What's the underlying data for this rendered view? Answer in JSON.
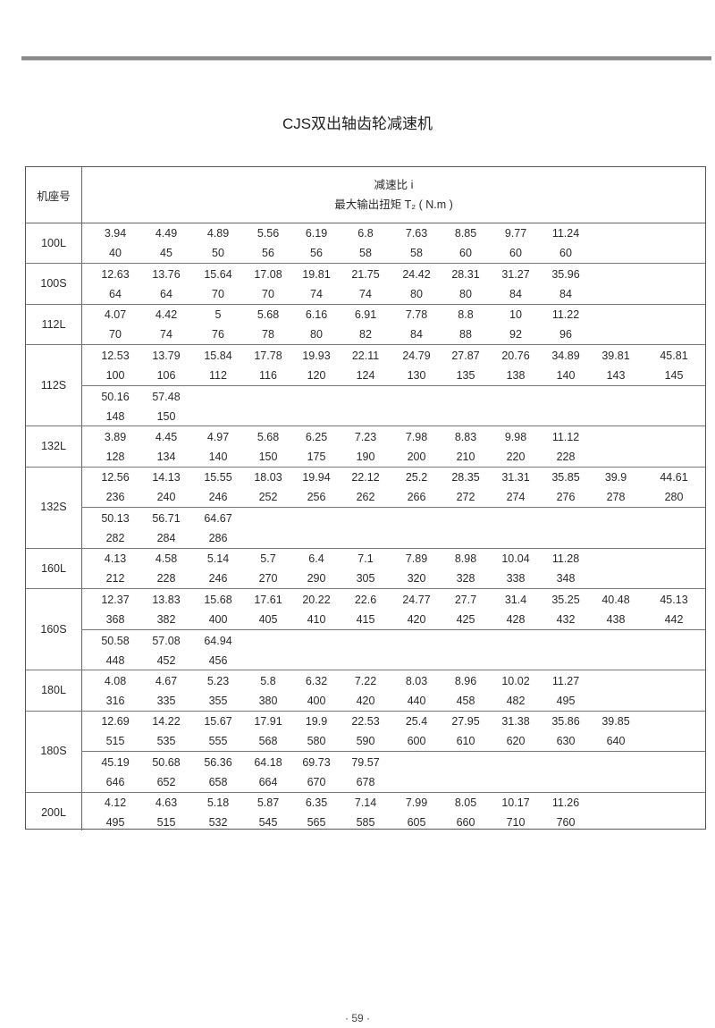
{
  "page": {
    "title": "CJS双出轴齿轮减速机",
    "page_number": "· 59 ·"
  },
  "table": {
    "header_model": "机座号",
    "header_ratio": "减速比 i",
    "header_torque": "最大输出扭矩  T₂ ( N.m )",
    "models": [
      {
        "name": "100L",
        "groups": [
          {
            "ratios": [
              "3.94",
              "4.49",
              "4.89",
              "5.56",
              "6.19",
              "6.8",
              "7.63",
              "8.85",
              "9.77",
              "11.24"
            ],
            "torques": [
              "40",
              "45",
              "50",
              "56",
              "56",
              "58",
              "58",
              "60",
              "60",
              "60"
            ]
          }
        ]
      },
      {
        "name": "100S",
        "groups": [
          {
            "ratios": [
              "12.63",
              "13.76",
              "15.64",
              "17.08",
              "19.81",
              "21.75",
              "24.42",
              "28.31",
              "31.27",
              "35.96"
            ],
            "torques": [
              "64",
              "64",
              "70",
              "70",
              "74",
              "74",
              "80",
              "80",
              "84",
              "84"
            ]
          }
        ]
      },
      {
        "name": "112L",
        "groups": [
          {
            "ratios": [
              "4.07",
              "4.42",
              "5",
              "5.68",
              "6.16",
              "6.91",
              "7.78",
              "8.8",
              "10",
              "11.22"
            ],
            "torques": [
              "70",
              "74",
              "76",
              "78",
              "80",
              "82",
              "84",
              "88",
              "92",
              "96"
            ]
          }
        ]
      },
      {
        "name": "112S",
        "groups": [
          {
            "ratios": [
              "12.53",
              "13.79",
              "15.84",
              "17.78",
              "19.93",
              "22.11",
              "24.79",
              "27.87",
              "20.76",
              "34.89",
              "39.81",
              "45.81"
            ],
            "torques": [
              "100",
              "106",
              "112",
              "116",
              "120",
              "124",
              "130",
              "135",
              "138",
              "140",
              "143",
              "145"
            ]
          },
          {
            "ratios": [
              "50.16",
              "57.48"
            ],
            "torques": [
              "148",
              "150"
            ]
          }
        ]
      },
      {
        "name": "132L",
        "groups": [
          {
            "ratios": [
              "3.89",
              "4.45",
              "4.97",
              "5.68",
              "6.25",
              "7.23",
              "7.98",
              "8.83",
              "9.98",
              "11.12"
            ],
            "torques": [
              "128",
              "134",
              "140",
              "150",
              "175",
              "190",
              "200",
              "210",
              "220",
              "228"
            ]
          }
        ]
      },
      {
        "name": "132S",
        "groups": [
          {
            "ratios": [
              "12.56",
              "14.13",
              "15.55",
              "18.03",
              "19.94",
              "22.12",
              "25.2",
              "28.35",
              "31.31",
              "35.85",
              "39.9",
              "44.61"
            ],
            "torques": [
              "236",
              "240",
              "246",
              "252",
              "256",
              "262",
              "266",
              "272",
              "274",
              "276",
              "278",
              "280"
            ]
          },
          {
            "ratios": [
              "50.13",
              "56.71",
              "64.67"
            ],
            "torques": [
              "282",
              "284",
              "286"
            ]
          }
        ]
      },
      {
        "name": "160L",
        "groups": [
          {
            "ratios": [
              "4.13",
              "4.58",
              "5.14",
              "5.7",
              "6.4",
              "7.1",
              "7.89",
              "8.98",
              "10.04",
              "11.28"
            ],
            "torques": [
              "212",
              "228",
              "246",
              "270",
              "290",
              "305",
              "320",
              "328",
              "338",
              "348"
            ]
          }
        ]
      },
      {
        "name": "160S",
        "groups": [
          {
            "ratios": [
              "12.37",
              "13.83",
              "15.68",
              "17.61",
              "20.22",
              "22.6",
              "24.77",
              "27.7",
              "31.4",
              "35.25",
              "40.48",
              "45.13"
            ],
            "torques": [
              "368",
              "382",
              "400",
              "405",
              "410",
              "415",
              "420",
              "425",
              "428",
              "432",
              "438",
              "442"
            ]
          },
          {
            "ratios": [
              "50.58",
              "57.08",
              "64.94"
            ],
            "torques": [
              "448",
              "452",
              "456"
            ]
          }
        ]
      },
      {
        "name": "180L",
        "groups": [
          {
            "ratios": [
              "4.08",
              "4.67",
              "5.23",
              "5.8",
              "6.32",
              "7.22",
              "8.03",
              "8.96",
              "10.02",
              "11.27"
            ],
            "torques": [
              "316",
              "335",
              "355",
              "380",
              "400",
              "420",
              "440",
              "458",
              "482",
              "495"
            ]
          }
        ]
      },
      {
        "name": "180S",
        "groups": [
          {
            "ratios": [
              "12.69",
              "14.22",
              "15.67",
              "17.91",
              "19.9",
              "22.53",
              "25.4",
              "27.95",
              "31.38",
              "35.86",
              "39.85"
            ],
            "torques": [
              "515",
              "535",
              "555",
              "568",
              "580",
              "590",
              "600",
              "610",
              "620",
              "630",
              "640"
            ]
          },
          {
            "ratios": [
              "45.19",
              "50.68",
              "56.36",
              "64.18",
              "69.73",
              "79.57"
            ],
            "torques": [
              "646",
              "652",
              "658",
              "664",
              "670",
              "678"
            ]
          }
        ]
      },
      {
        "name": "200L",
        "groups": [
          {
            "ratios": [
              "4.12",
              "4.63",
              "5.18",
              "5.87",
              "6.35",
              "7.14",
              "7.99",
              "8.05",
              "10.17",
              "11.26"
            ],
            "torques": [
              "495",
              "515",
              "532",
              "545",
              "565",
              "585",
              "605",
              "660",
              "710",
              "760"
            ]
          }
        ]
      }
    ]
  }
}
